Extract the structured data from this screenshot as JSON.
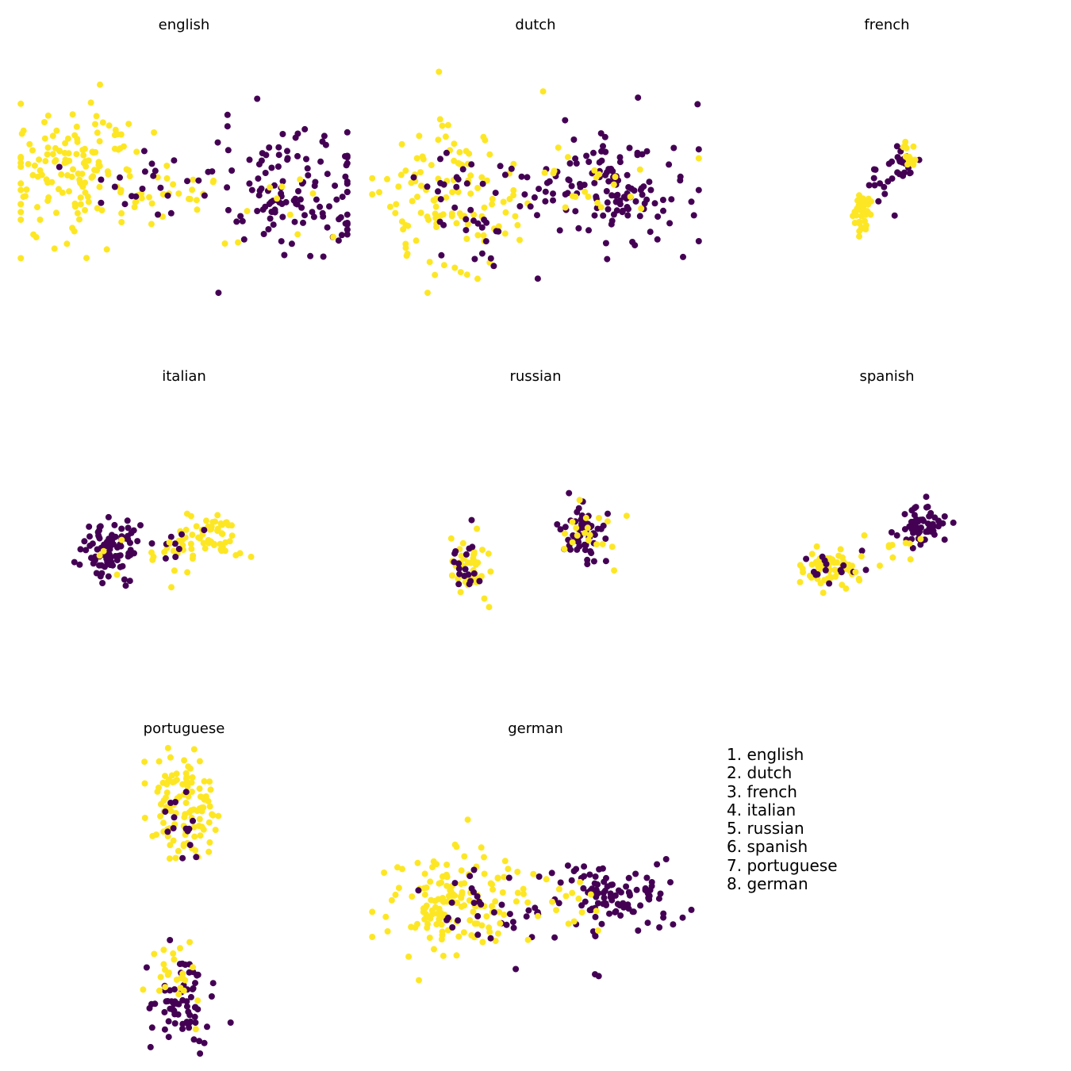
{
  "colors": {
    "class_0": "#440154",
    "class_1": "#fde725"
  },
  "legend": [
    "1. english",
    "2. dutch",
    "3. french",
    "4. italian",
    "5. russian",
    "6. spanish",
    "7. portuguese",
    "8. german"
  ],
  "chart_data": [
    {
      "type": "scatter",
      "title": "english",
      "grid": false,
      "axes": "off",
      "clusters": [
        {
          "class": 1,
          "n": 150,
          "cx": -3.2,
          "cy": 0.5,
          "sx": 1.1,
          "sy": 1.2
        },
        {
          "class": 1,
          "n": 20,
          "cx": -0.5,
          "cy": 0.1,
          "sx": 0.8,
          "sy": 0.3
        },
        {
          "class": 0,
          "n": 20,
          "cx": -0.8,
          "cy": 0.1,
          "sx": 1.0,
          "sy": 0.4
        },
        {
          "class": 0,
          "n": 130,
          "cx": 3.2,
          "cy": -0.1,
          "sx": 1.1,
          "sy": 1.0
        },
        {
          "class": 1,
          "n": 12,
          "cx": 2.6,
          "cy": -0.3,
          "sx": 1.2,
          "sy": 0.9
        }
      ]
    },
    {
      "type": "scatter",
      "title": "dutch",
      "grid": false,
      "axes": "off",
      "clusters": [
        {
          "class": 1,
          "n": 120,
          "cx": -2.5,
          "cy": -0.1,
          "sx": 1.1,
          "sy": 1.2
        },
        {
          "class": 0,
          "n": 45,
          "cx": -1.8,
          "cy": -0.3,
          "sx": 1.1,
          "sy": 1.0
        },
        {
          "class": 0,
          "n": 130,
          "cx": 2.2,
          "cy": 0.2,
          "sx": 1.2,
          "sy": 0.9
        },
        {
          "class": 1,
          "n": 22,
          "cx": 1.6,
          "cy": 0.4,
          "sx": 1.2,
          "sy": 0.8
        }
      ]
    },
    {
      "type": "scatter",
      "title": "french",
      "grid": false,
      "axes": "off",
      "clusters": [
        {
          "class": 1,
          "n": 35,
          "cx": -0.8,
          "cy": -0.6,
          "sx": 0.15,
          "sy": 0.25
        },
        {
          "class": 0,
          "n": 25,
          "cx": 0.5,
          "cy": 1.0,
          "sx": 0.15,
          "sy": 0.25
        },
        {
          "class": 1,
          "n": 15,
          "cx": 0.6,
          "cy": 1.2,
          "sx": 0.12,
          "sy": 0.2
        },
        {
          "class": 0,
          "n": 12,
          "cx": -0.1,
          "cy": 0.2,
          "sx": 0.25,
          "sy": 0.35
        }
      ]
    },
    {
      "type": "scatter",
      "title": "italian",
      "grid": false,
      "axes": "off",
      "clusters": [
        {
          "class": 0,
          "n": 85,
          "cx": -2.3,
          "cy": -0.2,
          "sx": 0.4,
          "sy": 0.5
        },
        {
          "class": 1,
          "n": 60,
          "cx": 0.8,
          "cy": 0.3,
          "sx": 0.5,
          "sy": 0.4
        },
        {
          "class": 0,
          "n": 20,
          "cx": -0.5,
          "cy": 0.1,
          "sx": 0.7,
          "sy": 0.3
        },
        {
          "class": 1,
          "n": 12,
          "cx": -1.2,
          "cy": -0.4,
          "sx": 0.8,
          "sy": 0.4
        }
      ]
    },
    {
      "type": "scatter",
      "title": "russian",
      "grid": false,
      "axes": "off",
      "clusters": [
        {
          "class": 1,
          "n": 45,
          "cx": -2.0,
          "cy": -0.5,
          "sx": 0.3,
          "sy": 0.5
        },
        {
          "class": 0,
          "n": 18,
          "cx": -2.0,
          "cy": -0.6,
          "sx": 0.3,
          "sy": 0.5
        },
        {
          "class": 0,
          "n": 55,
          "cx": 1.5,
          "cy": 0.5,
          "sx": 0.35,
          "sy": 0.5
        },
        {
          "class": 1,
          "n": 20,
          "cx": 1.5,
          "cy": 0.5,
          "sx": 0.4,
          "sy": 0.5
        }
      ]
    },
    {
      "type": "scatter",
      "title": "spanish",
      "grid": false,
      "axes": "off",
      "clusters": [
        {
          "class": 1,
          "n": 70,
          "cx": -1.8,
          "cy": -0.7,
          "sx": 0.4,
          "sy": 0.3
        },
        {
          "class": 0,
          "n": 15,
          "cx": -1.5,
          "cy": -0.8,
          "sx": 0.5,
          "sy": 0.3
        },
        {
          "class": 0,
          "n": 60,
          "cx": 1.0,
          "cy": 0.7,
          "sx": 0.35,
          "sy": 0.4
        },
        {
          "class": 1,
          "n": 12,
          "cx": -0.2,
          "cy": -0.1,
          "sx": 0.6,
          "sy": 0.3
        }
      ]
    },
    {
      "type": "scatter",
      "title": "portuguese",
      "grid": false,
      "axes": "off",
      "clusters": [
        {
          "class": 1,
          "n": 110,
          "cx": 0.0,
          "cy": 3.0,
          "sx": 0.5,
          "sy": 0.8
        },
        {
          "class": 0,
          "n": 14,
          "cx": 0.0,
          "cy": 2.4,
          "sx": 0.5,
          "sy": 0.8
        },
        {
          "class": 0,
          "n": 70,
          "cx": -0.1,
          "cy": -3.2,
          "sx": 0.45,
          "sy": 0.8
        },
        {
          "class": 1,
          "n": 25,
          "cx": -0.2,
          "cy": -2.6,
          "sx": 0.45,
          "sy": 0.8
        }
      ]
    },
    {
      "type": "scatter",
      "title": "german",
      "grid": false,
      "axes": "off",
      "clusters": [
        {
          "class": 1,
          "n": 140,
          "cx": -2.6,
          "cy": -0.2,
          "sx": 0.9,
          "sy": 0.9
        },
        {
          "class": 0,
          "n": 30,
          "cx": -1.6,
          "cy": -0.2,
          "sx": 1.0,
          "sy": 0.8
        },
        {
          "class": 0,
          "n": 110,
          "cx": 2.2,
          "cy": 0.0,
          "sx": 1.1,
          "sy": 0.6
        },
        {
          "class": 1,
          "n": 25,
          "cx": 0.8,
          "cy": 0.1,
          "sx": 1.3,
          "sy": 0.5
        }
      ]
    }
  ]
}
